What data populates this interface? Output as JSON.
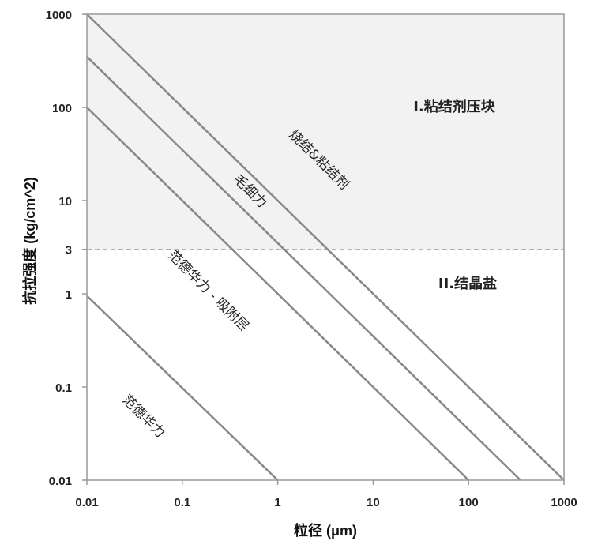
{
  "chart_data": {
    "type": "line",
    "xscale": "log",
    "yscale": "log",
    "xlim": [
      0.01,
      1000
    ],
    "ylim": [
      0.01,
      1000
    ],
    "xlabel": "粒径 (μm)",
    "ylabel": "抗拉强度 (kg/cm^2)",
    "x_ticks": [
      "0.01",
      "0.1",
      "1",
      "10",
      "100",
      "1000"
    ],
    "y_ticks": [
      "0.01",
      "0.1",
      "1",
      "10",
      "100",
      "1000"
    ],
    "extra_y_tick": {
      "value": 3,
      "label": "3"
    },
    "threshold_line": {
      "y": 3,
      "style": "dashed",
      "color": "#b3b3b3"
    },
    "shaded_region": {
      "y_from": 3,
      "y_to": 1000,
      "color": "#f2f2f2"
    },
    "grid": false,
    "series": [
      {
        "label": "范德华力",
        "x": [
          0.01,
          1
        ],
        "y": [
          0.95,
          0.01
        ]
      },
      {
        "label": "范德华力 - 吸附层",
        "x": [
          0.01,
          100
        ],
        "y": [
          100,
          0.01
        ]
      },
      {
        "label": "毛细力",
        "x": [
          0.01,
          350
        ],
        "y": [
          350,
          0.01
        ]
      },
      {
        "label": "烧结&粘结剂",
        "x": [
          0.01,
          1000
        ],
        "y": [
          1000,
          0.01
        ]
      }
    ],
    "line_color": "#888888",
    "regions": [
      "I.粘结剂压块",
      "II.结晶盐"
    ]
  }
}
